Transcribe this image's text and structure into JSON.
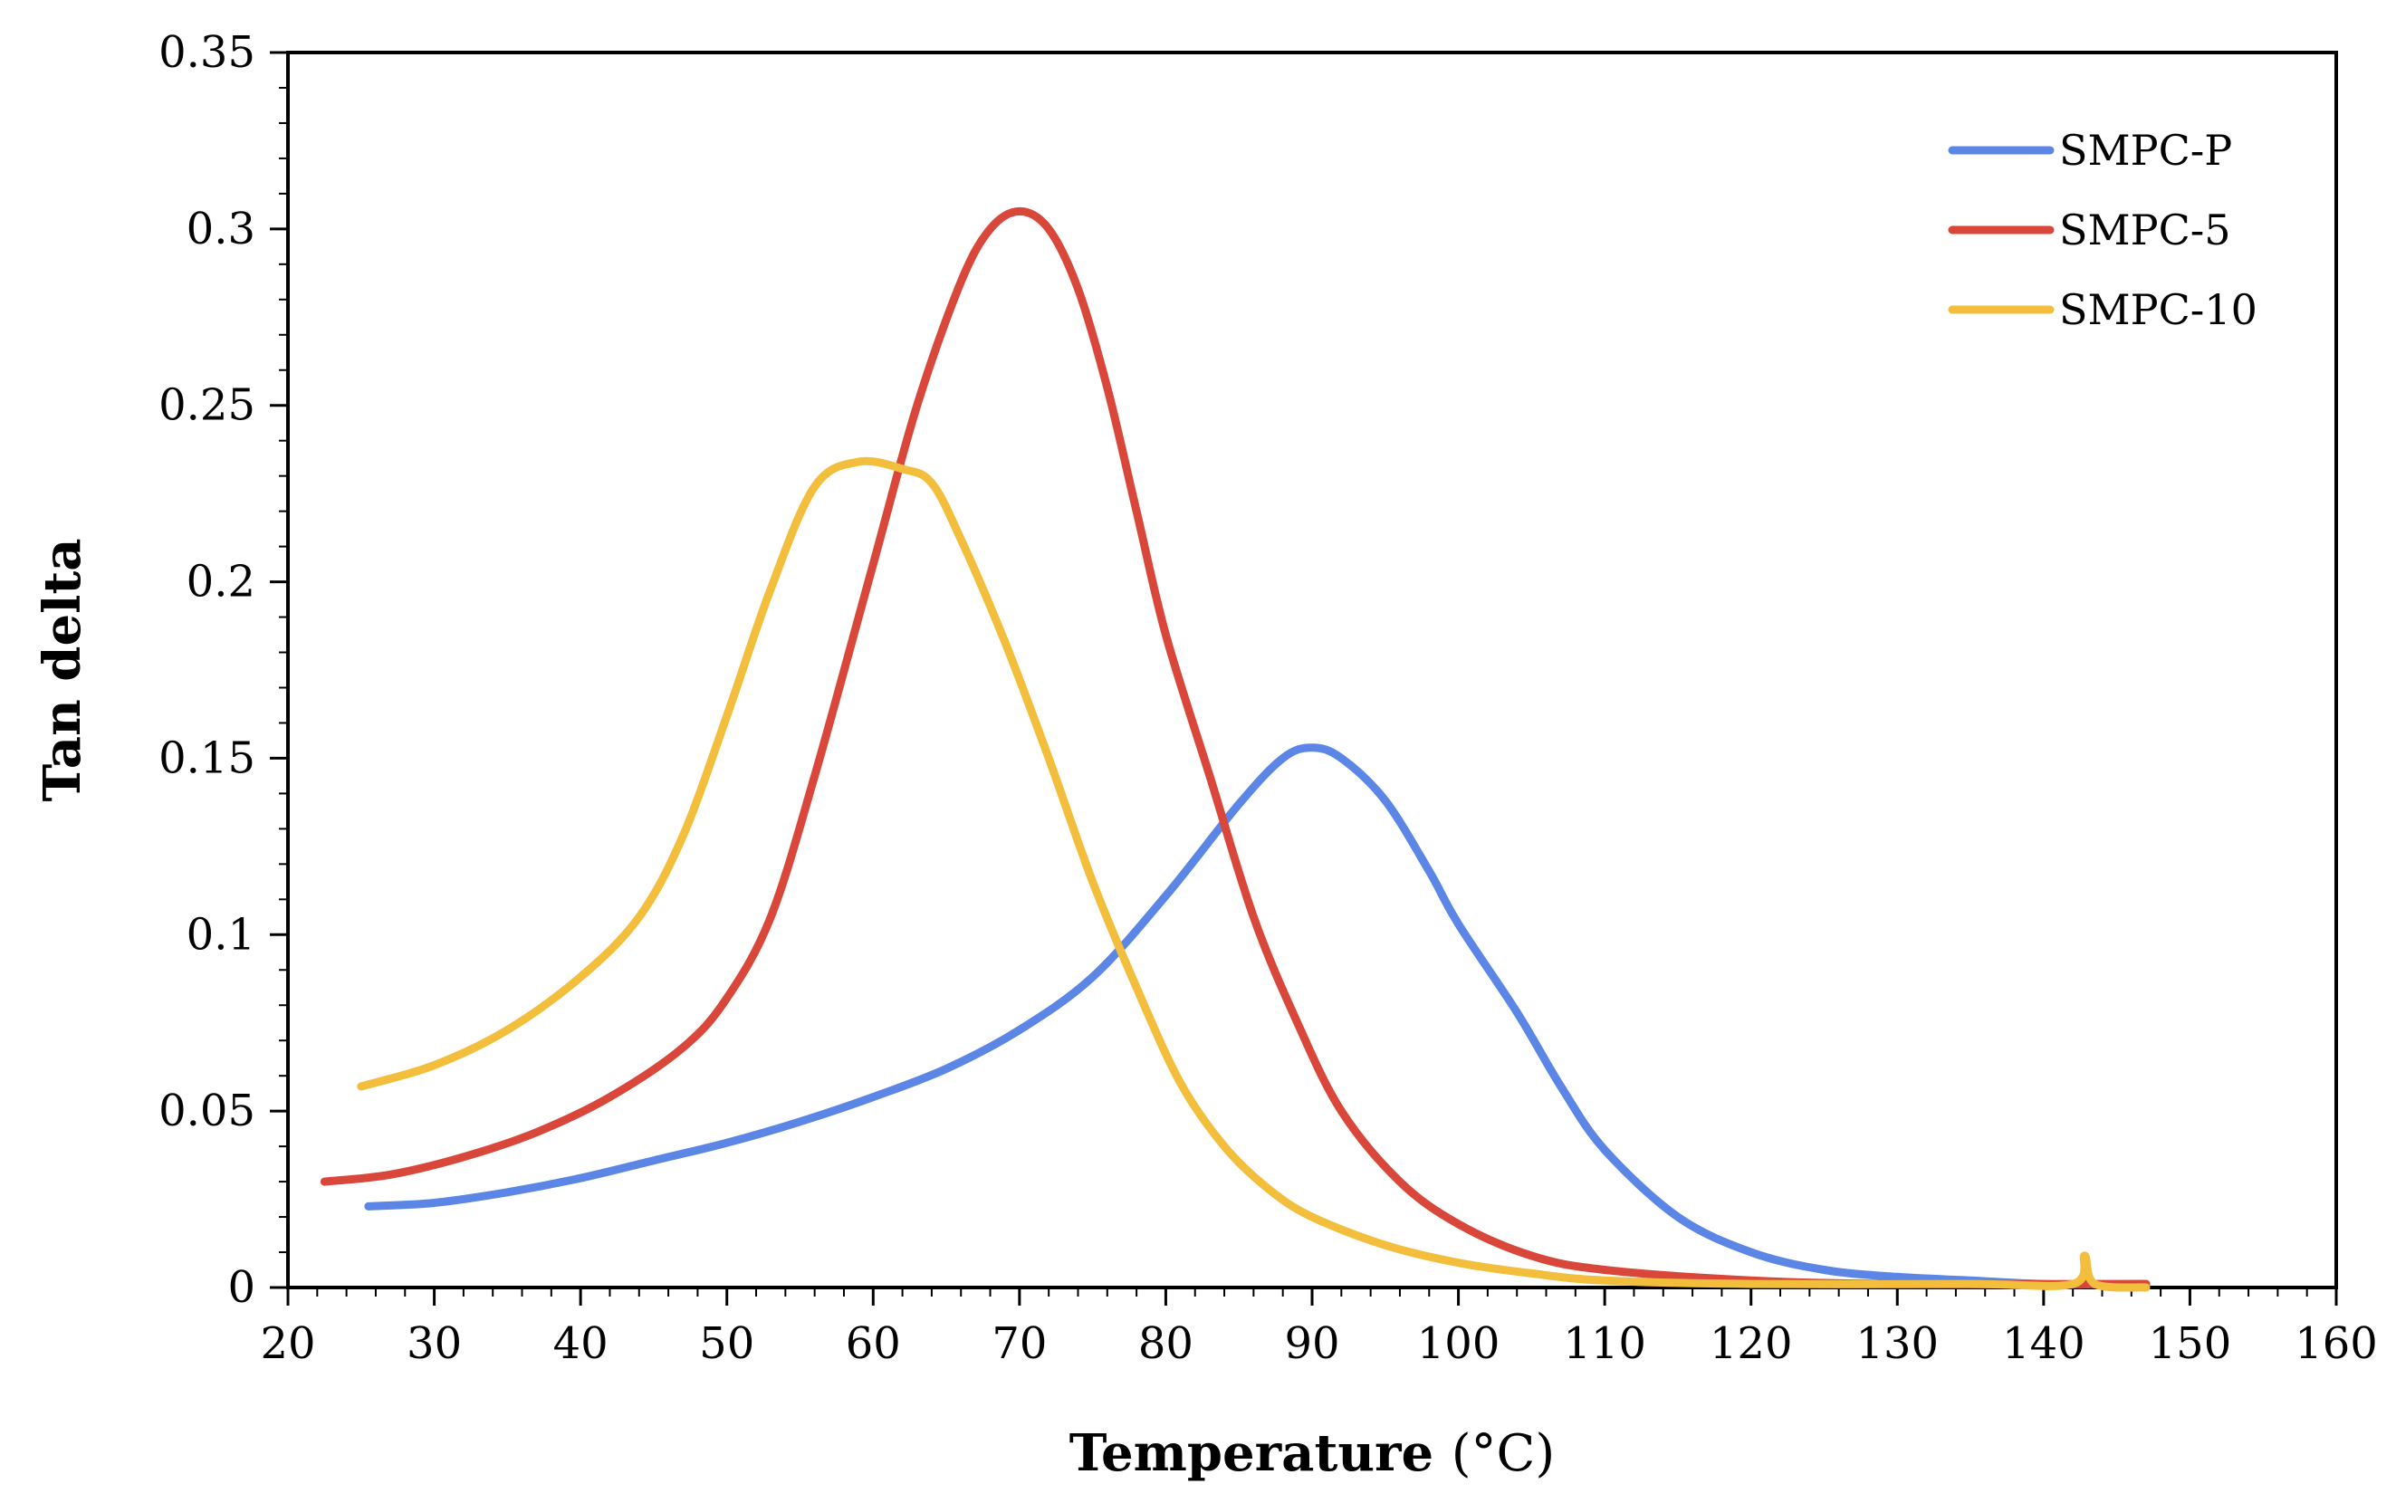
{
  "chart_data": {
    "type": "line",
    "title": "",
    "xlabel": "Temperature",
    "xlabel_unit": "(°C)",
    "ylabel": "Tan delta",
    "xlim": [
      20,
      160
    ],
    "ylim": [
      0,
      0.35
    ],
    "x_ticks": [
      20,
      30,
      40,
      50,
      60,
      70,
      80,
      90,
      100,
      110,
      120,
      130,
      140,
      150,
      160
    ],
    "y_ticks": [
      0,
      0.05,
      0.1,
      0.15,
      0.2,
      0.25,
      0.3,
      0.35
    ],
    "y_tick_labels": [
      "0",
      "0.05",
      "0.1",
      "0.15",
      "0.2",
      "0.25",
      "0.3",
      "0.35"
    ],
    "grid": false,
    "legend_position": "top-right",
    "series": [
      {
        "name": "SMPC-P",
        "color": "#5B86E5",
        "points": [
          [
            25.5,
            0.023
          ],
          [
            30,
            0.024
          ],
          [
            35,
            0.027
          ],
          [
            40,
            0.031
          ],
          [
            45,
            0.036
          ],
          [
            50,
            0.041
          ],
          [
            55,
            0.047
          ],
          [
            60,
            0.054
          ],
          [
            65,
            0.062
          ],
          [
            70,
            0.073
          ],
          [
            75,
            0.088
          ],
          [
            80,
            0.111
          ],
          [
            85,
            0.137
          ],
          [
            88,
            0.15
          ],
          [
            90,
            0.153
          ],
          [
            92,
            0.15
          ],
          [
            95,
            0.138
          ],
          [
            98,
            0.118
          ],
          [
            100,
            0.103
          ],
          [
            104,
            0.078
          ],
          [
            107,
            0.057
          ],
          [
            110,
            0.039
          ],
          [
            115,
            0.02
          ],
          [
            120,
            0.01
          ],
          [
            125,
            0.005
          ],
          [
            130,
            0.003
          ],
          [
            135,
            0.002
          ],
          [
            140,
            0.001
          ],
          [
            147,
            0.001
          ]
        ]
      },
      {
        "name": "SMPC-5",
        "color": "#D9473A",
        "points": [
          [
            22.5,
            0.03
          ],
          [
            27,
            0.032
          ],
          [
            32,
            0.037
          ],
          [
            37,
            0.044
          ],
          [
            42,
            0.054
          ],
          [
            47,
            0.068
          ],
          [
            50,
            0.082
          ],
          [
            53,
            0.105
          ],
          [
            56,
            0.145
          ],
          [
            60,
            0.205
          ],
          [
            63,
            0.25
          ],
          [
            66,
            0.285
          ],
          [
            68,
            0.3
          ],
          [
            70,
            0.305
          ],
          [
            72,
            0.3
          ],
          [
            74,
            0.283
          ],
          [
            76,
            0.255
          ],
          [
            78,
            0.22
          ],
          [
            80,
            0.185
          ],
          [
            83,
            0.145
          ],
          [
            86,
            0.105
          ],
          [
            89,
            0.075
          ],
          [
            92,
            0.05
          ],
          [
            96,
            0.03
          ],
          [
            100,
            0.018
          ],
          [
            105,
            0.009
          ],
          [
            110,
            0.005
          ],
          [
            120,
            0.002
          ],
          [
            130,
            0.001
          ],
          [
            147,
            0.001
          ]
        ]
      },
      {
        "name": "SMPC-10",
        "color": "#F2BE3C",
        "points": [
          [
            25,
            0.057
          ],
          [
            30,
            0.063
          ],
          [
            35,
            0.073
          ],
          [
            40,
            0.088
          ],
          [
            44,
            0.105
          ],
          [
            47,
            0.128
          ],
          [
            50,
            0.162
          ],
          [
            53,
            0.198
          ],
          [
            56,
            0.227
          ],
          [
            59,
            0.234
          ],
          [
            62,
            0.232
          ],
          [
            64,
            0.228
          ],
          [
            66,
            0.212
          ],
          [
            69,
            0.183
          ],
          [
            72,
            0.15
          ],
          [
            75,
            0.115
          ],
          [
            78,
            0.085
          ],
          [
            81,
            0.058
          ],
          [
            84,
            0.04
          ],
          [
            87,
            0.028
          ],
          [
            90,
            0.02
          ],
          [
            95,
            0.012
          ],
          [
            100,
            0.007
          ],
          [
            105,
            0.004
          ],
          [
            110,
            0.002
          ],
          [
            120,
            0.001
          ],
          [
            135,
            0.001
          ],
          [
            142,
            0.001
          ],
          [
            142.8,
            0.009
          ],
          [
            143.5,
            0.001
          ],
          [
            147,
            0.0
          ]
        ]
      }
    ]
  }
}
